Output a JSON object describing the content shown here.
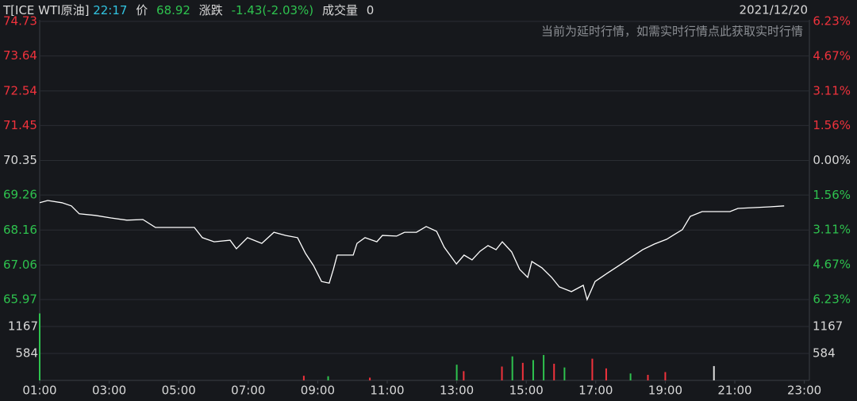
{
  "chart_data": {
    "type": "line",
    "title": "T[ICE WTI原油]",
    "time": "22:17",
    "price_label": "价",
    "price": 68.92,
    "change_label": "涨跌",
    "change": "-1.43(-2.03%)",
    "volume_label": "成交量",
    "volume_total": 0,
    "date": "2021/12/20",
    "notice": "当前为延时行情，如需实时行情点此获取实时行情",
    "up_color": "#f0323c",
    "down_color": "#2ec24e",
    "grid": true,
    "xlim": [
      1,
      23
    ],
    "xticks": [
      {
        "value": 1,
        "label": "01:00"
      },
      {
        "value": 3,
        "label": "03:00"
      },
      {
        "value": 5,
        "label": "05:00"
      },
      {
        "value": 7,
        "label": "07:00"
      },
      {
        "value": 9,
        "label": "09:00"
      },
      {
        "value": 11,
        "label": "11:00"
      },
      {
        "value": 13,
        "label": "13:00"
      },
      {
        "value": 15,
        "label": "15:00"
      },
      {
        "value": 17,
        "label": "17:00"
      },
      {
        "value": 19,
        "label": "19:00"
      },
      {
        "value": 21,
        "label": "21:00"
      },
      {
        "value": 23,
        "label": "23:00"
      }
    ],
    "ylim": [
      65.97,
      74.73
    ],
    "yticks": [
      74.73,
      73.64,
      72.54,
      71.45,
      70.35,
      69.26,
      68.16,
      67.06,
      65.97
    ],
    "y2lim": [
      -6.23,
      6.23
    ],
    "y2ticks": [
      {
        "value": 6.23,
        "label": "6.23%"
      },
      {
        "value": 4.67,
        "label": "4.67%"
      },
      {
        "value": 3.11,
        "label": "3.11%"
      },
      {
        "value": 1.56,
        "label": "1.56%"
      },
      {
        "value": 0,
        "label": "0.00%"
      },
      {
        "value": -1.56,
        "label": "1.56%"
      },
      {
        "value": -3.11,
        "label": "3.11%"
      },
      {
        "value": -4.67,
        "label": "4.67%"
      },
      {
        "value": -6.23,
        "label": "6.23%"
      }
    ],
    "series": [
      {
        "color": "#ffffff",
        "x": [
          1.0,
          1.23,
          1.64,
          1.91,
          2.14,
          2.6,
          3.05,
          3.51,
          3.97,
          4.33,
          5.45,
          5.68,
          6.02,
          6.48,
          6.66,
          6.98,
          7.39,
          7.74,
          8.08,
          8.42,
          8.65,
          8.88,
          9.11,
          9.33,
          9.45,
          9.56,
          10.02,
          10.13,
          10.36,
          10.7,
          10.86,
          11.27,
          11.5,
          11.84,
          12.12,
          12.42,
          12.64,
          12.99,
          13.21,
          13.44,
          13.67,
          13.9,
          14.13,
          14.31,
          14.58,
          14.81,
          15.04,
          15.16,
          15.45,
          15.73,
          15.95,
          16.3,
          16.64,
          16.75,
          16.98,
          17.32,
          17.67,
          18.01,
          18.35,
          18.69,
          19.04,
          19.26,
          19.49,
          19.72,
          20.06,
          20.86,
          21.09,
          22.0,
          22.42
        ],
        "values": [
          69.02,
          69.09,
          69.02,
          68.92,
          68.67,
          68.62,
          68.54,
          68.47,
          68.49,
          68.24,
          68.24,
          67.92,
          67.79,
          67.84,
          67.57,
          67.92,
          67.74,
          68.09,
          67.99,
          67.92,
          67.42,
          67.04,
          66.54,
          66.49,
          66.92,
          67.37,
          67.37,
          67.74,
          67.92,
          67.79,
          67.99,
          67.97,
          68.09,
          68.09,
          68.27,
          68.12,
          67.62,
          67.09,
          67.37,
          67.22,
          67.49,
          67.67,
          67.54,
          67.79,
          67.47,
          66.92,
          66.67,
          67.17,
          66.97,
          66.67,
          66.37,
          66.22,
          66.42,
          65.97,
          66.54,
          66.79,
          67.04,
          67.29,
          67.54,
          67.72,
          67.87,
          68.02,
          68.17,
          68.59,
          68.74,
          68.74,
          68.84,
          68.89,
          68.92
        ]
      }
    ],
    "volume": {
      "ylim": [
        0,
        1750
      ],
      "yticks": [
        1167,
        584
      ],
      "x": [
        1.0,
        8.6,
        9.3,
        10.5,
        13.0,
        13.2,
        14.3,
        14.6,
        14.9,
        15.2,
        15.5,
        15.8,
        16.1,
        16.9,
        17.3,
        18.0,
        18.5,
        19.0,
        20.4
      ],
      "values": [
        1450,
        100,
        90,
        60,
        340,
        200,
        300,
        520,
        380,
        440,
        550,
        360,
        280,
        470,
        260,
        150,
        120,
        180,
        310
      ],
      "colors": [
        "#2ec24e",
        "#f0323c",
        "#2ec24e",
        "#f0323c",
        "#2ec24e",
        "#f0323c",
        "#f0323c",
        "#2ec24e",
        "#f0323c",
        "#2ec24e",
        "#2ec24e",
        "#f0323c",
        "#2ec24e",
        "#f0323c",
        "#f0323c",
        "#2ec24e",
        "#f0323c",
        "#f0323c",
        "#dddddd"
      ]
    }
  }
}
